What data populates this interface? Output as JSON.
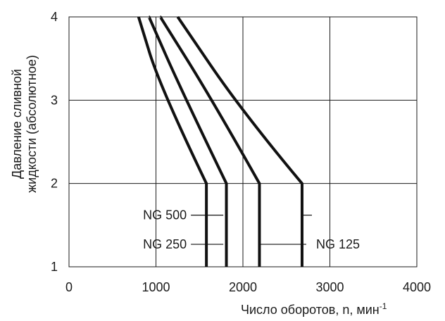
{
  "chart_data": {
    "type": "line",
    "xlim": [
      0,
      4000
    ],
    "ylim": [
      1,
      4
    ],
    "xticks": [
      "0",
      "1000",
      "2000",
      "3000",
      "4000"
    ],
    "yticks": [
      "1",
      "2",
      "3",
      "4"
    ],
    "grid": true,
    "ylabel_line1": "Давление сливной",
    "ylabel_line2": "жидкости (абсолютное)",
    "xlabel_main": "Число оборотов, n, мин",
    "xlabel_sup": "-1",
    "series": [
      {
        "x": [
          1580,
          1580,
          1050,
          800
        ],
        "y": [
          1,
          2,
          3.15,
          4
        ]
      },
      {
        "x": [
          1810,
          1810,
          1300,
          920
        ],
        "y": [
          1,
          2,
          3.1,
          4
        ]
      },
      {
        "x": [
          2190,
          2190,
          1650,
          1050
        ],
        "y": [
          1,
          2,
          3.0,
          4
        ]
      },
      {
        "x": [
          2680,
          2680,
          2000,
          1250
        ],
        "y": [
          1,
          2,
          2.85,
          4
        ]
      }
    ],
    "annotations": [
      {
        "text": "NG 500",
        "x": 1580,
        "y": 1.62,
        "side": "left"
      },
      {
        "text": "NG 250",
        "x": 1580,
        "y": 1.27,
        "side": "left"
      },
      {
        "text": "NG 125",
        "x": 2190,
        "y": 1.27,
        "side": "right"
      }
    ]
  }
}
